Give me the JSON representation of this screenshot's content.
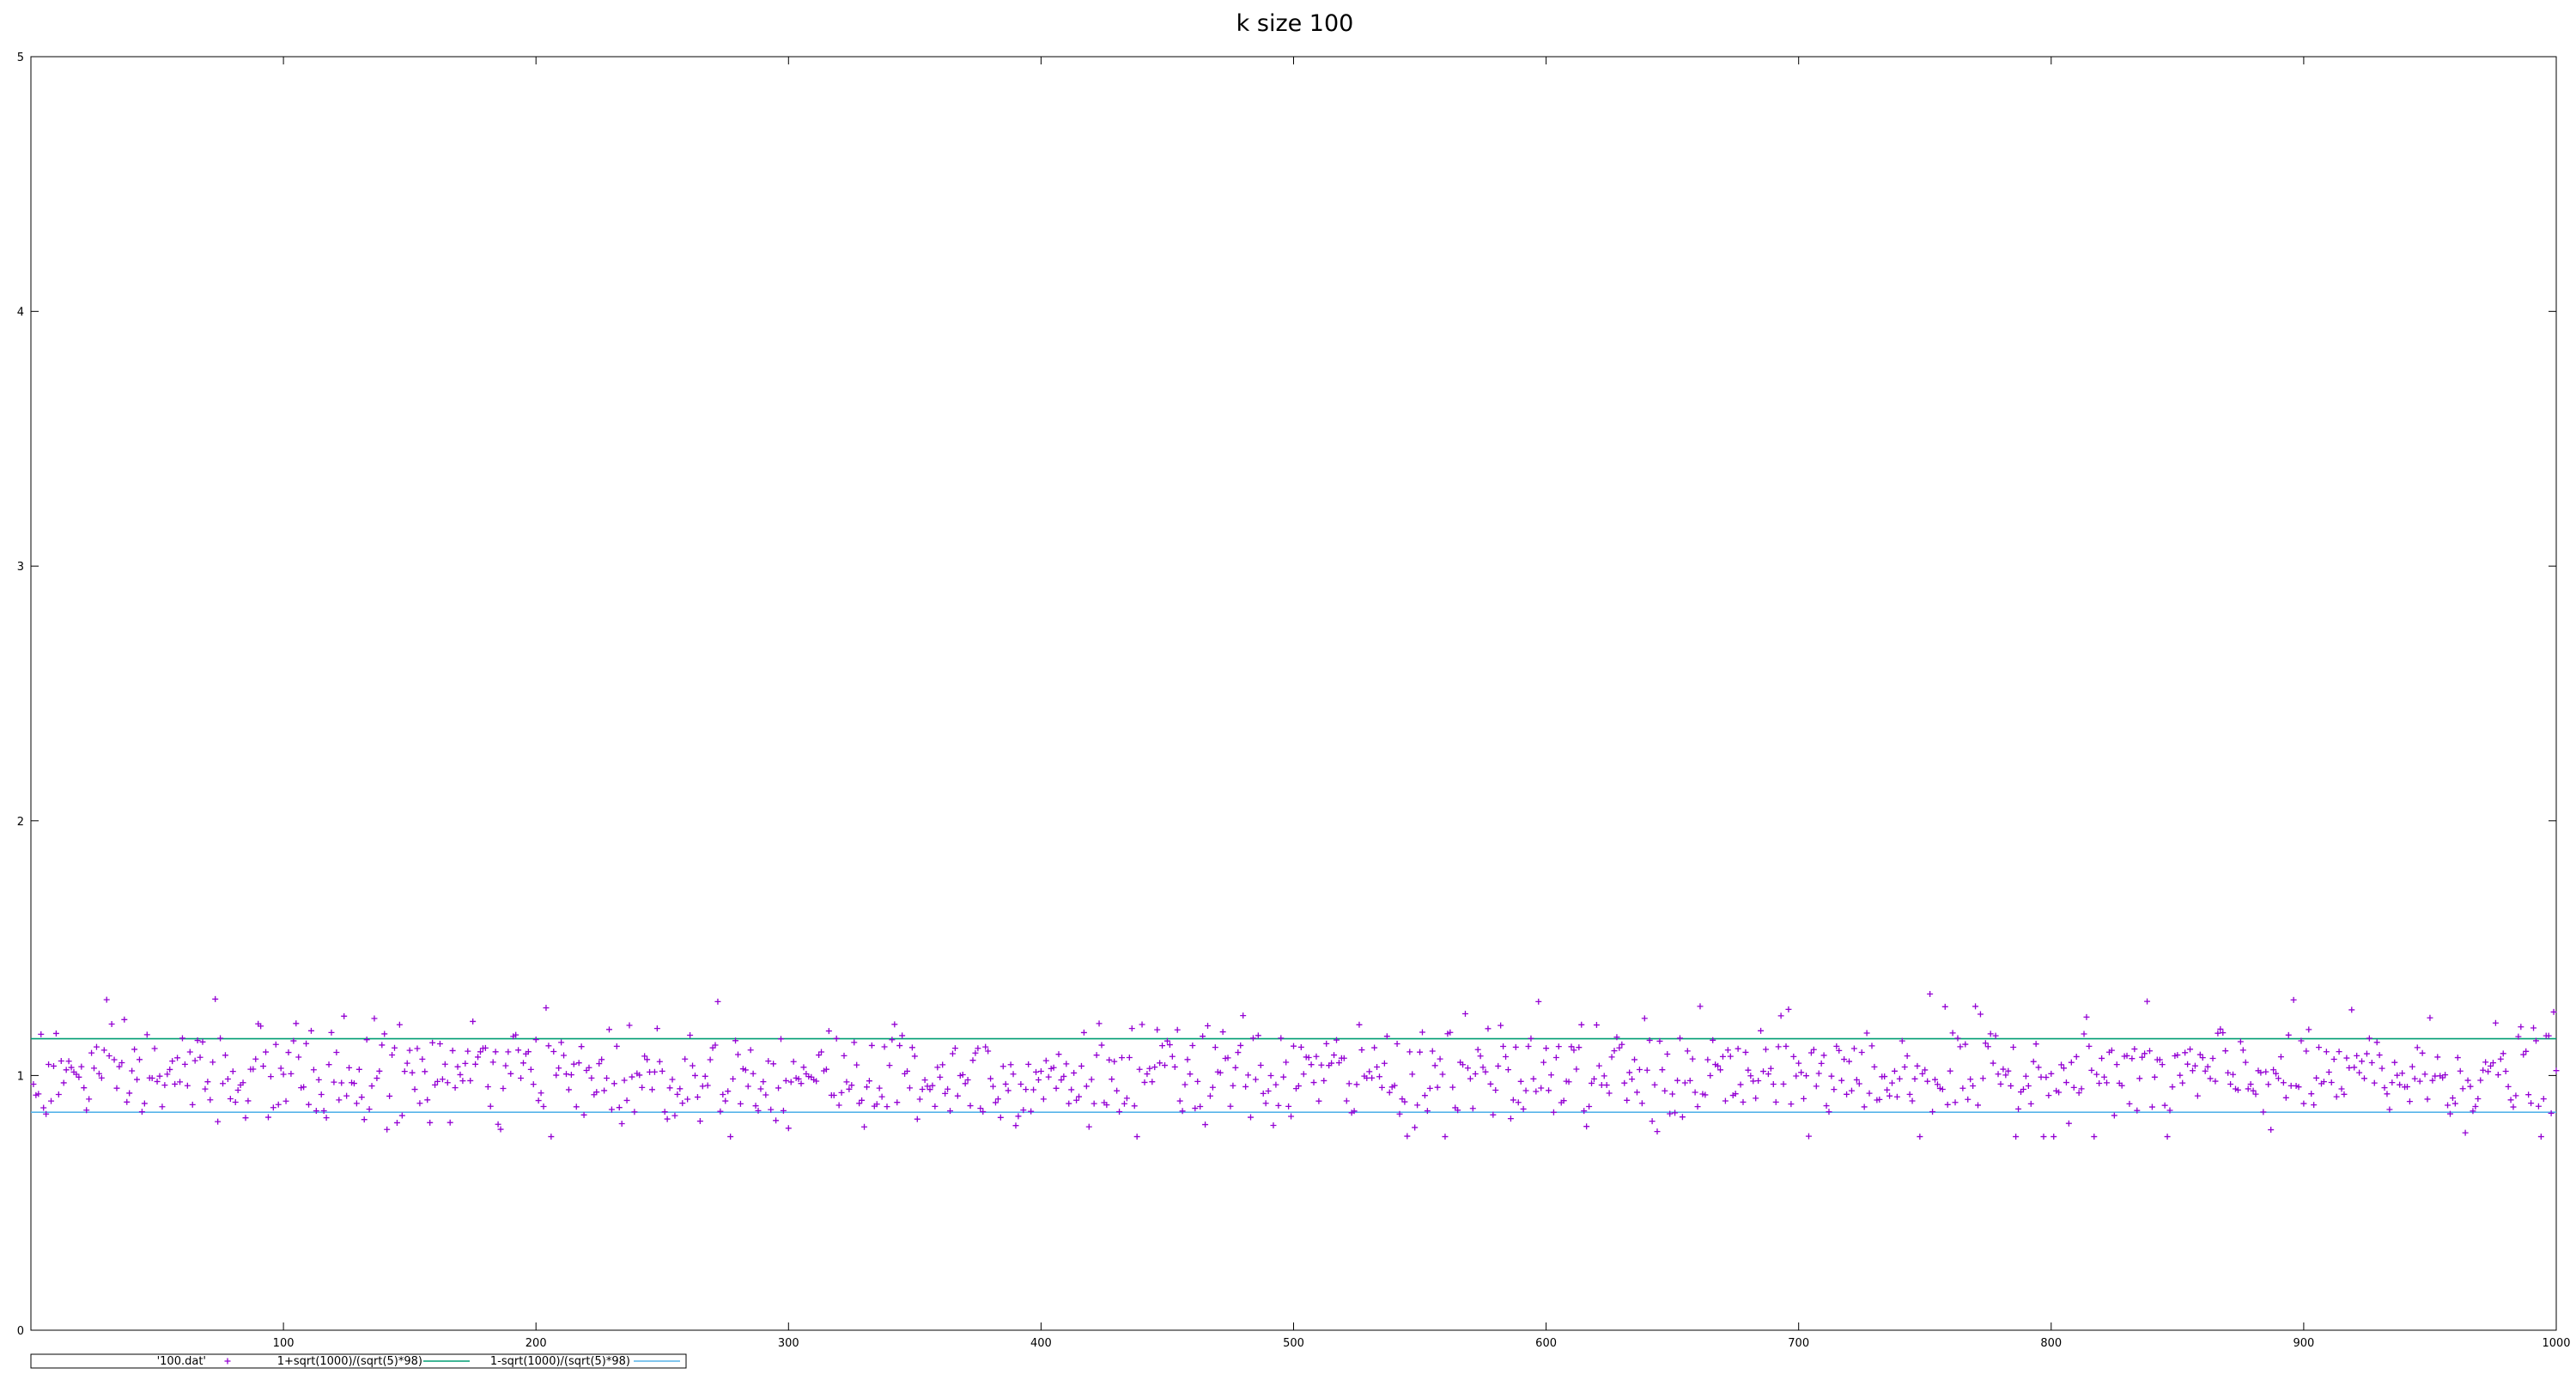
{
  "chart_data": {
    "type": "scatter",
    "title": "k size 100",
    "xlabel": "",
    "ylabel": "",
    "xlim": [
      0,
      1000
    ],
    "ylim": [
      0,
      5
    ],
    "x_ticks": [
      100,
      200,
      300,
      400,
      500,
      600,
      700,
      800,
      900,
      1000
    ],
    "y_ticks": [
      0,
      1,
      2,
      3,
      4,
      5
    ],
    "grid": false,
    "legend_position": "bottom-left",
    "series": [
      {
        "name": "'100.dat'",
        "kind": "points",
        "marker": "+",
        "color": "#9400d3",
        "x_start": 1,
        "x_step": 1,
        "count": 1000,
        "approx_center": 1.0,
        "approx_range": [
          0.76,
          1.32
        ],
        "notable_points": [
          {
            "x": 73,
            "y": 1.3
          },
          {
            "x": 272,
            "y": 1.29
          },
          {
            "x": 597,
            "y": 1.29
          },
          {
            "x": 752,
            "y": 1.32
          },
          {
            "x": 758,
            "y": 1.27
          },
          {
            "x": 438,
            "y": 0.76
          },
          {
            "x": 846,
            "y": 0.76
          },
          {
            "x": 644,
            "y": 0.78
          }
        ]
      },
      {
        "name": "1+sqrt(1000)/(sqrt(5)*98)",
        "kind": "line",
        "color": "#009e73",
        "value": 1.1443
      },
      {
        "name": "1-sqrt(1000)/(sqrt(5)*98)",
        "kind": "line",
        "color": "#56b4e9",
        "value": 0.8557
      }
    ]
  }
}
